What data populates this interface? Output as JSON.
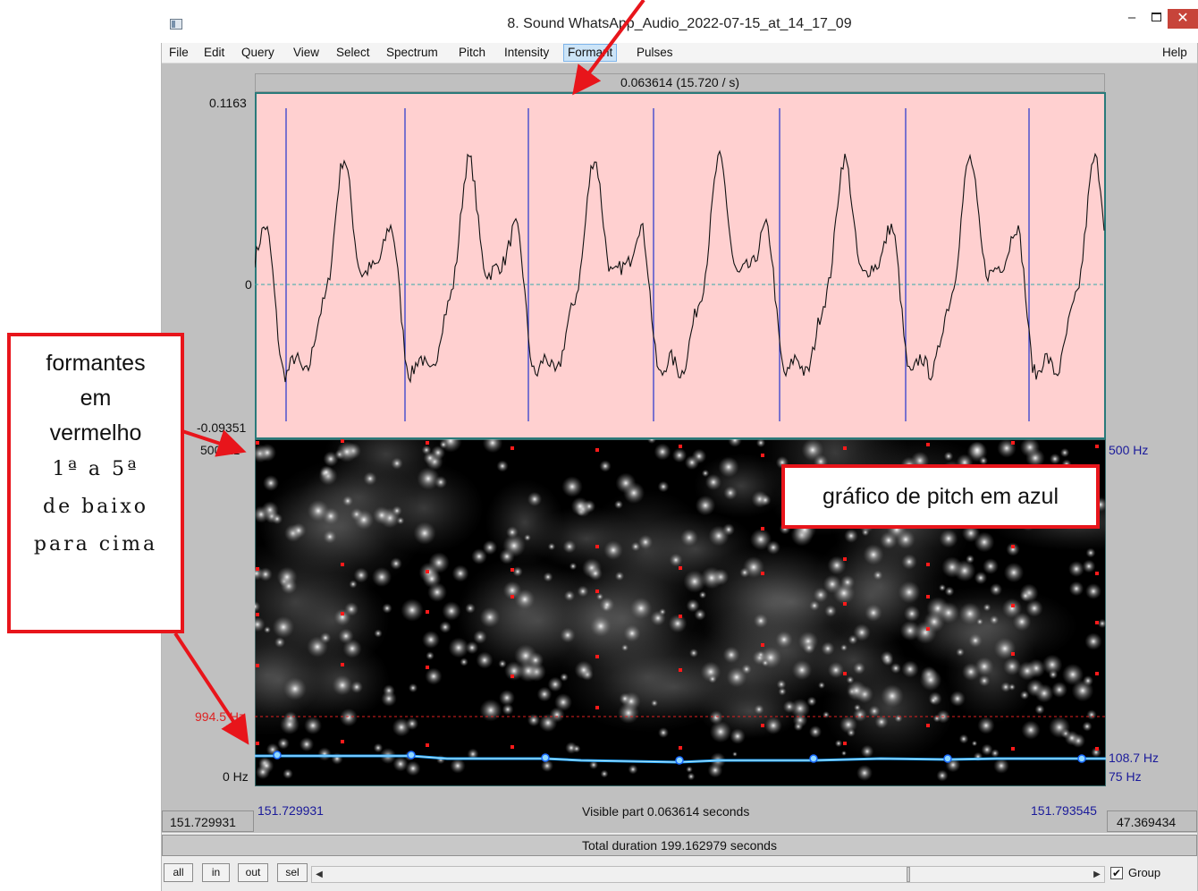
{
  "window": {
    "title": "8. Sound WhatsApp_Audio_2022-07-15_at_14_17_09",
    "min_glyph": "–",
    "close_glyph": "✕",
    "icon": "praat-window-icon"
  },
  "menu": [
    "File",
    "Edit",
    "Query",
    "View",
    "Select",
    "Spectrum",
    "Pitch",
    "Intensity",
    "Formant",
    "Pulses"
  ],
  "menu_help": "Help",
  "menu_active": "Formant",
  "top_info": "0.063614 (15.720 / s)",
  "waveform": {
    "y_max": "0.1163",
    "y_zero": "0",
    "y_min": "-0.09351"
  },
  "spectrogram": {
    "left_top": "500 Hz",
    "left_bottom": "0 Hz",
    "dashed_label": "994.5 Hz",
    "right_top": "500 Hz",
    "right_pitch": "108.7 Hz",
    "right_bottom": "75 Hz"
  },
  "bottom": {
    "start_time": "151.729931",
    "end_time": "151.793545",
    "visible_part": "Visible part 0.063614 seconds",
    "left_cell": "151.729931",
    "right_cell": "47.369434",
    "total": "Total duration 199.162979 seconds"
  },
  "buttons": {
    "all": "all",
    "in": "in",
    "out": "out",
    "sel": "sel"
  },
  "group": {
    "label": "Group",
    "checked": "✔"
  },
  "annotations": {
    "left_lines_sans": [
      "formantes",
      "em",
      "vermelho"
    ],
    "left_lines_serif": [
      "1ª a 5ª",
      "de baixo",
      "para cima"
    ],
    "pitch_label": "gráfico de pitch em azul"
  },
  "colors": {
    "waveform_bg": "#ffd0d0",
    "pulse_line": "#2222cc",
    "formant_dot": "#ff1a1a",
    "pitch_line": "#22aaff",
    "callout_border": "#e8151b"
  }
}
